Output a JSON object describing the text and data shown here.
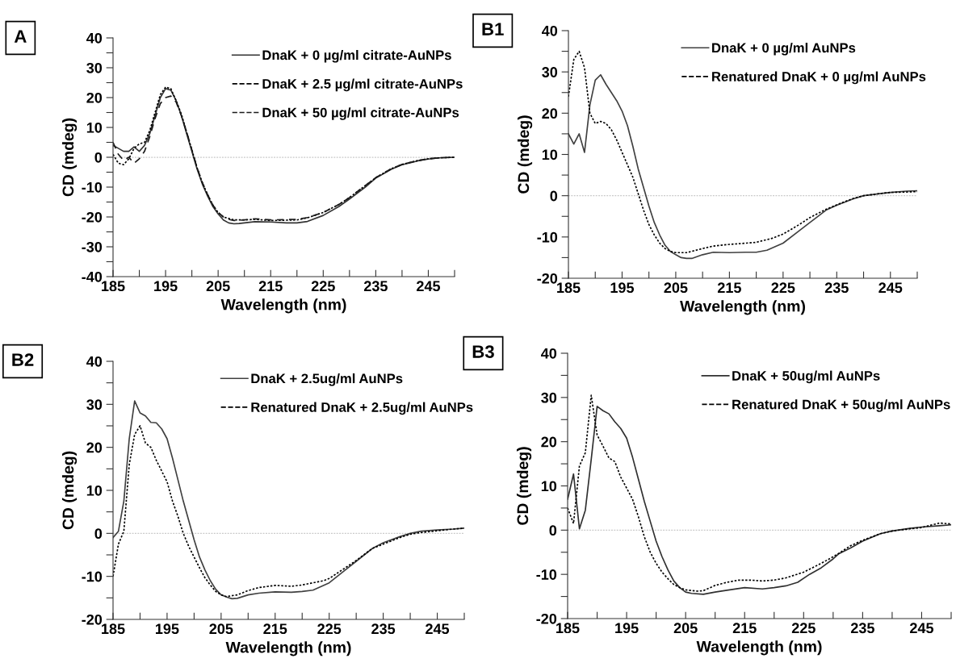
{
  "chart_data": [
    {
      "type": "line",
      "title": "A",
      "xlabel": "Wavelength (nm)",
      "ylabel": "CD (mdeg)",
      "xlim": [
        185,
        250
      ],
      "ylim": [
        -40,
        40
      ],
      "xticks": [
        185,
        {
          "value": 190,
          "label": null
        },
        195,
        {
          "value": 200,
          "label": null
        },
        205,
        {
          "value": 210,
          "label": null
        },
        215,
        {
          "value": 220,
          "label": null
        },
        225,
        {
          "value": 230,
          "label": null
        },
        235,
        {
          "value": 240,
          "label": null
        },
        245,
        {
          "value": 250,
          "label": null
        }
      ],
      "yticks": [
        -40,
        {
          "value": -35,
          "label": null
        },
        -30,
        {
          "value": -25,
          "label": null
        },
        -20,
        {
          "value": -15,
          "label": null
        },
        -10,
        {
          "value": -5,
          "label": null
        },
        0,
        {
          "value": 5,
          "label": null
        },
        10,
        {
          "value": 15,
          "label": null
        },
        20,
        {
          "value": 25,
          "label": null
        },
        30,
        {
          "value": 35,
          "label": null
        },
        40
      ],
      "legend": "top right",
      "grid": false,
      "marker": "none",
      "ref_lines": [
        {
          "axis": "y",
          "value": 0,
          "color": "#c8c8c8",
          "line_style": "dotted"
        }
      ],
      "series": [
        {
          "name": "DnaK + 0 µg/ml citrate-AuNPs",
          "color": "#333333",
          "line_style": "solid",
          "x": [
            185,
            186,
            187,
            188,
            189,
            190,
            191,
            192,
            193,
            194,
            195,
            196,
            197,
            198,
            199,
            200,
            201,
            202,
            203,
            204,
            205,
            206,
            207,
            208,
            209,
            210,
            212,
            215,
            218,
            220,
            222,
            225,
            228,
            230,
            233,
            235,
            238,
            240,
            243,
            245,
            247,
            250
          ],
          "values": [
            4,
            3,
            2,
            2,
            3.5,
            2,
            4,
            8,
            14,
            20,
            23,
            22.5,
            19,
            14,
            8,
            2,
            -4,
            -9,
            -13,
            -16.5,
            -19,
            -21,
            -22,
            -22.3,
            -22.2,
            -22,
            -21.6,
            -21.7,
            -22,
            -22,
            -21.5,
            -19.5,
            -16.5,
            -14,
            -10,
            -7,
            -4,
            -2.5,
            -1.2,
            -0.6,
            -0.2,
            0
          ]
        },
        {
          "name": "DnaK + 2.5 µg/ml citrate-AuNPs",
          "color": "#000000",
          "line_style": "dotted",
          "x": [
            185,
            186,
            187,
            188,
            189,
            190,
            191,
            192,
            193,
            194,
            195,
            196,
            197,
            198,
            199,
            200,
            201,
            202,
            203,
            204,
            205,
            206,
            207,
            208,
            210,
            212,
            215,
            220,
            222,
            225,
            228,
            230,
            233,
            235,
            238,
            240,
            243,
            245,
            247,
            250
          ],
          "values": [
            1,
            -2,
            -2.5,
            -0.5,
            3,
            4.5,
            5,
            9,
            15,
            21,
            23.5,
            23,
            19,
            14.5,
            8.5,
            2.5,
            -3.5,
            -8.5,
            -12.5,
            -16,
            -18.5,
            -20,
            -20.5,
            -21,
            -21,
            -20.8,
            -21.2,
            -21,
            -20.3,
            -18.5,
            -15.8,
            -13.5,
            -9.5,
            -6.8,
            -3.8,
            -2.4,
            -1.1,
            -0.5,
            -0.2,
            0
          ]
        },
        {
          "name": "DnaK + 50 µg/ml citrate-AuNPs",
          "color": "#1a1a1a",
          "line_style": "dashed",
          "x": [
            185,
            186,
            187,
            188,
            189,
            190,
            191,
            192,
            193,
            194,
            195,
            196,
            197,
            198,
            199,
            200,
            201,
            202,
            203,
            204,
            205,
            206,
            207,
            208,
            210,
            212,
            215,
            220,
            222,
            225,
            228,
            230,
            233,
            235,
            238,
            240,
            243,
            245,
            247,
            250
          ],
          "values": [
            5,
            1,
            -1,
            0,
            -2,
            -0.5,
            2,
            7,
            13,
            18,
            20,
            20.5,
            18.5,
            14,
            8.5,
            2.5,
            -3.5,
            -8.5,
            -12.5,
            -16,
            -18.5,
            -20,
            -20.8,
            -21.2,
            -21,
            -20.6,
            -21,
            -20.8,
            -20.2,
            -18.5,
            -15.8,
            -13.5,
            -9.5,
            -6.8,
            -3.8,
            -2.4,
            -1.1,
            -0.5,
            -0.2,
            0
          ]
        }
      ]
    },
    {
      "type": "line",
      "title": "B1",
      "xlabel": "Wavelength (nm)",
      "ylabel": "CD (mdeg)",
      "xlim": [
        185,
        250
      ],
      "ylim": [
        -20,
        40
      ],
      "xticks": [
        185,
        {
          "value": 190,
          "label": null
        },
        195,
        {
          "value": 200,
          "label": null
        },
        205,
        {
          "value": 210,
          "label": null
        },
        215,
        {
          "value": 220,
          "label": null
        },
        225,
        {
          "value": 230,
          "label": null
        },
        235,
        {
          "value": 240,
          "label": null
        },
        245,
        {
          "value": 250,
          "label": null
        }
      ],
      "yticks": [
        -20,
        {
          "value": -15,
          "label": null
        },
        -10,
        {
          "value": -5,
          "label": null
        },
        0,
        {
          "value": 5,
          "label": null
        },
        10,
        {
          "value": 15,
          "label": null
        },
        20,
        {
          "value": 25,
          "label": null
        },
        30,
        {
          "value": 35,
          "label": null
        },
        40
      ],
      "legend": "top right",
      "grid": false,
      "marker": "none",
      "ref_lines": [
        {
          "axis": "y",
          "value": 0,
          "color": "#c8c8c8",
          "line_style": "dotted"
        }
      ],
      "series": [
        {
          "name": "DnaK + 0 µg/ml AuNPs",
          "color": "#404040",
          "line_style": "solid",
          "x": [
            185,
            186,
            187,
            188,
            189,
            190,
            191,
            192,
            193,
            194,
            195,
            196,
            197,
            198,
            199,
            200,
            201,
            202,
            203,
            204,
            205,
            206,
            207,
            208,
            210,
            212,
            215,
            218,
            220,
            222,
            225,
            228,
            230,
            233,
            235,
            238,
            240,
            243,
            245,
            248,
            250
          ],
          "values": [
            15,
            12.5,
            15,
            10.5,
            22,
            28,
            29.3,
            27,
            25,
            23,
            20.5,
            17,
            12,
            6.5,
            2,
            -2.5,
            -6.5,
            -9.5,
            -12,
            -13.5,
            -14.3,
            -15,
            -15.2,
            -15.2,
            -14.3,
            -13.7,
            -13.8,
            -13.7,
            -13.7,
            -13.2,
            -11.5,
            -8.5,
            -6.5,
            -3.5,
            -2.3,
            -0.8,
            0,
            0.5,
            0.8,
            1.1,
            1.2
          ]
        },
        {
          "name": "Renatured DnaK + 0 µg/ml AuNPs",
          "color": "#000000",
          "line_style": "dotted",
          "x": [
            185,
            186,
            187,
            188,
            189,
            190,
            191,
            192,
            193,
            194,
            195,
            196,
            197,
            198,
            199,
            200,
            201,
            202,
            203,
            204,
            205,
            207,
            210,
            212,
            215,
            220,
            223,
            225,
            228,
            230,
            233,
            235,
            238,
            240,
            243,
            245,
            248,
            250
          ],
          "values": [
            24,
            33,
            35,
            31,
            20,
            17.5,
            18,
            17.5,
            16,
            13.5,
            10.5,
            7.5,
            4.5,
            0.5,
            -3.5,
            -7,
            -9.5,
            -11.5,
            -12.8,
            -13.5,
            -13.8,
            -13.8,
            -12.8,
            -12.2,
            -11.8,
            -11.3,
            -10.3,
            -9.3,
            -7,
            -5.3,
            -3.3,
            -2.2,
            -0.7,
            0,
            0.5,
            0.8,
            0.9,
            1
          ]
        }
      ]
    },
    {
      "type": "line",
      "title": "B2",
      "xlabel": "Wavelength (nm)",
      "ylabel": "CD (mdeg)",
      "xlim": [
        185,
        250
      ],
      "ylim": [
        -20,
        40
      ],
      "xticks": [
        185,
        {
          "value": 190,
          "label": null
        },
        195,
        {
          "value": 200,
          "label": null
        },
        205,
        {
          "value": 210,
          "label": null
        },
        215,
        {
          "value": 220,
          "label": null
        },
        225,
        {
          "value": 230,
          "label": null
        },
        235,
        {
          "value": 240,
          "label": null
        },
        245,
        {
          "value": 250,
          "label": null
        }
      ],
      "yticks": [
        -20,
        {
          "value": -15,
          "label": null
        },
        -10,
        {
          "value": -5,
          "label": null
        },
        0,
        {
          "value": 5,
          "label": null
        },
        10,
        {
          "value": 15,
          "label": null
        },
        20,
        {
          "value": 25,
          "label": null
        },
        30,
        {
          "value": 35,
          "label": null
        },
        40
      ],
      "legend": "top right",
      "grid": false,
      "marker": "none",
      "ref_lines": [
        {
          "axis": "y",
          "value": 0,
          "color": "#c8c8c8",
          "line_style": "dotted"
        }
      ],
      "series": [
        {
          "name": "DnaK + 2.5ug/ml AuNPs",
          "color": "#404040",
          "line_style": "solid",
          "x": [
            185,
            186,
            187,
            188,
            189,
            190,
            191,
            192,
            193,
            194,
            195,
            196,
            197,
            198,
            199,
            200,
            201,
            202,
            203,
            204,
            205,
            206,
            207,
            208,
            210,
            212,
            215,
            218,
            220,
            222,
            225,
            228,
            230,
            233,
            235,
            238,
            240,
            242,
            245,
            248,
            250
          ],
          "values": [
            -1,
            0.5,
            7.5,
            22,
            30.8,
            28,
            27.3,
            25.8,
            25.7,
            24.3,
            22,
            17.5,
            12.5,
            7.5,
            3,
            -1.5,
            -5.5,
            -8.5,
            -11,
            -13,
            -14.3,
            -14.8,
            -15.2,
            -15.1,
            -14.3,
            -13.9,
            -13.6,
            -13.7,
            -13.5,
            -13.2,
            -11.5,
            -8.5,
            -6.5,
            -3.5,
            -2.2,
            -0.8,
            0,
            0.5,
            0.8,
            1,
            1.2
          ]
        },
        {
          "name": "Renatured DnaK + 2.5ug/ml AuNPs",
          "color": "#000000",
          "line_style": "dotted",
          "x": [
            185,
            186,
            187,
            188,
            189,
            190,
            191,
            192,
            193,
            194,
            195,
            196,
            197,
            198,
            199,
            200,
            201,
            202,
            203,
            204,
            205,
            206,
            208,
            210,
            212,
            215,
            218,
            220,
            222,
            224,
            225,
            228,
            230,
            233,
            235,
            238,
            240,
            242,
            245,
            248,
            250
          ],
          "values": [
            -10,
            -2.5,
            0.5,
            16,
            23,
            25,
            21,
            20,
            17,
            14.5,
            12,
            7.5,
            4,
            0,
            -3,
            -5.5,
            -8,
            -10.3,
            -12,
            -13.5,
            -14.3,
            -14.7,
            -14.3,
            -13.3,
            -12.6,
            -12.1,
            -12.3,
            -12,
            -11.5,
            -11,
            -10.5,
            -8,
            -6.3,
            -3.5,
            -2.5,
            -1,
            -0.2,
            0.2,
            0.6,
            1,
            1.2
          ]
        }
      ]
    },
    {
      "type": "line",
      "title": "B3",
      "xlabel": "Wavelength (nm)",
      "ylabel": "CD (mdeg)",
      "xlim": [
        185,
        250
      ],
      "ylim": [
        -20,
        40
      ],
      "xticks": [
        185,
        {
          "value": 190,
          "label": null
        },
        195,
        {
          "value": 200,
          "label": null
        },
        205,
        {
          "value": 210,
          "label": null
        },
        215,
        {
          "value": 220,
          "label": null
        },
        225,
        {
          "value": 230,
          "label": null
        },
        235,
        {
          "value": 240,
          "label": null
        },
        245,
        {
          "value": 250,
          "label": null
        }
      ],
      "yticks": [
        -20,
        {
          "value": -15,
          "label": null
        },
        -10,
        {
          "value": -5,
          "label": null
        },
        0,
        {
          "value": 5,
          "label": null
        },
        10,
        {
          "value": 15,
          "label": null
        },
        20,
        {
          "value": 25,
          "label": null
        },
        30,
        {
          "value": 35,
          "label": null
        },
        40
      ],
      "legend": "top right",
      "grid": false,
      "marker": "none",
      "ref_lines": [
        {
          "axis": "y",
          "value": 0,
          "color": "#c8c8c8",
          "line_style": "dotted"
        }
      ],
      "series": [
        {
          "name": "DnaK + 50ug/ml AuNPs",
          "color": "#303030",
          "line_style": "solid",
          "x": [
            185,
            186,
            187,
            188,
            189,
            190,
            191,
            192,
            193,
            194,
            195,
            196,
            197,
            198,
            199,
            200,
            201,
            202,
            203,
            204,
            205,
            206,
            208,
            210,
            212,
            215,
            218,
            220,
            222,
            224,
            226,
            228,
            230,
            231,
            233,
            235,
            238,
            240,
            243,
            245,
            248,
            250
          ],
          "values": [
            7,
            12.7,
            0.3,
            4.5,
            16,
            28,
            27,
            26.3,
            24.5,
            23,
            20.8,
            16.5,
            11.5,
            6.5,
            2,
            -2.5,
            -6,
            -9,
            -11.5,
            -13,
            -14,
            -14.3,
            -14.5,
            -14,
            -13.6,
            -13,
            -13.3,
            -13,
            -12.6,
            -11.8,
            -10,
            -8.5,
            -6.5,
            -5.3,
            -4,
            -2.5,
            -0.8,
            -0.2,
            0.4,
            0.7,
            1,
            1.2
          ]
        },
        {
          "name": "Renatured DnaK + 50ug/ml AuNPs",
          "color": "#000000",
          "line_style": "dotted",
          "x": [
            185,
            186,
            187,
            188,
            189,
            190,
            191,
            192,
            193,
            194,
            195,
            196,
            197,
            198,
            199,
            200,
            201,
            202,
            203,
            204,
            205,
            207,
            208,
            210,
            212,
            214,
            216,
            218,
            220,
            222,
            225,
            228,
            230,
            231,
            233,
            235,
            238,
            240,
            243,
            245,
            248,
            250
          ],
          "values": [
            5,
            1.5,
            14.5,
            17.5,
            30.5,
            21.5,
            19,
            16.3,
            15.5,
            12,
            9.5,
            7,
            3,
            -1.5,
            -5,
            -7.5,
            -9.5,
            -11,
            -12.3,
            -13,
            -13.5,
            -13.8,
            -13.7,
            -12.5,
            -11.8,
            -11.3,
            -11.3,
            -11.5,
            -11.3,
            -10.8,
            -9.5,
            -7.5,
            -6,
            -5.2,
            -3.5,
            -2.3,
            -0.8,
            -0.2,
            0.3,
            0.6,
            1.6,
            1.4
          ]
        }
      ]
    }
  ]
}
